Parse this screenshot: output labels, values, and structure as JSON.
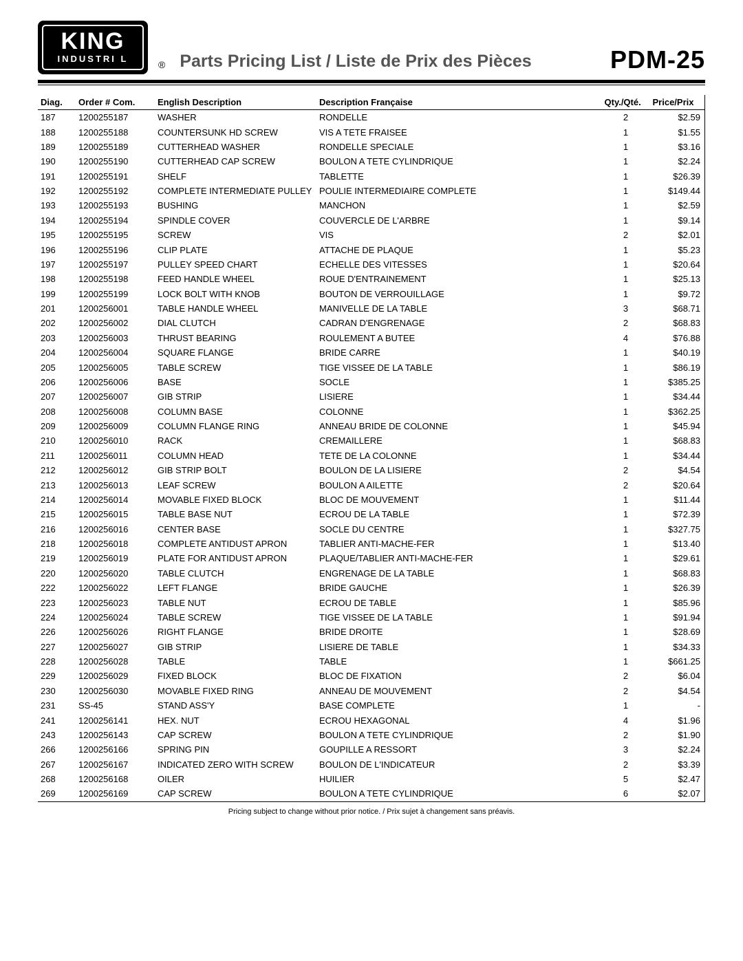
{
  "logo": {
    "line1": "KING",
    "line2": "INDUSTRI  L"
  },
  "registered": "®",
  "title": "Parts Pricing List / Liste de Prix des Pièces",
  "model": "PDM-25",
  "columns": [
    "Diag.",
    "Order # Com.",
    "English Description",
    "Description Française",
    "Qty./Qté.",
    "Price/Prix"
  ],
  "rows": [
    [
      "187",
      "1200255187",
      "WASHER",
      "RONDELLE",
      "2",
      "$2.59"
    ],
    [
      "188",
      "1200255188",
      "COUNTERSUNK HD SCREW",
      "VIS A TETE FRAISEE",
      "1",
      "$1.55"
    ],
    [
      "189",
      "1200255189",
      "CUTTERHEAD WASHER",
      "RONDELLE SPECIALE",
      "1",
      "$3.16"
    ],
    [
      "190",
      "1200255190",
      "CUTTERHEAD CAP SCREW",
      "BOULON A TETE CYLINDRIQUE",
      "1",
      "$2.24"
    ],
    [
      "191",
      "1200255191",
      "SHELF",
      "TABLETTE",
      "1",
      "$26.39"
    ],
    [
      "192",
      "1200255192",
      "COMPLETE INTERMEDIATE PULLEY",
      "POULIE INTERMEDIAIRE COMPLETE",
      "1",
      "$149.44"
    ],
    [
      "193",
      "1200255193",
      "BUSHING",
      "MANCHON",
      "1",
      "$2.59"
    ],
    [
      "194",
      "1200255194",
      "SPINDLE COVER",
      "COUVERCLE DE L'ARBRE",
      "1",
      "$9.14"
    ],
    [
      "195",
      "1200255195",
      "SCREW",
      "VIS",
      "2",
      "$2.01"
    ],
    [
      "196",
      "1200255196",
      "CLIP PLATE",
      "ATTACHE DE PLAQUE",
      "1",
      "$5.23"
    ],
    [
      "197",
      "1200255197",
      "PULLEY SPEED CHART",
      "ECHELLE DES VITESSES",
      "1",
      "$20.64"
    ],
    [
      "198",
      "1200255198",
      "FEED HANDLE WHEEL",
      "ROUE D'ENTRAINEMENT",
      "1",
      "$25.13"
    ],
    [
      "199",
      "1200255199",
      "LOCK BOLT WITH KNOB",
      "BOUTON DE VERROUILLAGE",
      "1",
      "$9.72"
    ],
    [
      "201",
      "1200256001",
      "TABLE HANDLE WHEEL",
      "MANIVELLE DE LA TABLE",
      "3",
      "$68.71"
    ],
    [
      "202",
      "1200256002",
      "DIAL CLUTCH",
      "CADRAN D'ENGRENAGE",
      "2",
      "$68.83"
    ],
    [
      "203",
      "1200256003",
      "THRUST BEARING",
      "ROULEMENT A BUTEE",
      "4",
      "$76.88"
    ],
    [
      "204",
      "1200256004",
      "SQUARE FLANGE",
      "BRIDE CARRE",
      "1",
      "$40.19"
    ],
    [
      "205",
      "1200256005",
      "TABLE SCREW",
      "TIGE VISSEE DE LA TABLE",
      "1",
      "$86.19"
    ],
    [
      "206",
      "1200256006",
      "BASE",
      "SOCLE",
      "1",
      "$385.25"
    ],
    [
      "207",
      "1200256007",
      "GIB STRIP",
      "LISIERE",
      "1",
      "$34.44"
    ],
    [
      "208",
      "1200256008",
      "COLUMN BASE",
      "COLONNE",
      "1",
      "$362.25"
    ],
    [
      "209",
      "1200256009",
      "COLUMN FLANGE RING",
      "ANNEAU BRIDE DE COLONNE",
      "1",
      "$45.94"
    ],
    [
      "210",
      "1200256010",
      "RACK",
      "CREMAILLERE",
      "1",
      "$68.83"
    ],
    [
      "211",
      "1200256011",
      "COLUMN HEAD",
      "TETE DE LA COLONNE",
      "1",
      "$34.44"
    ],
    [
      "212",
      "1200256012",
      "GIB STRIP BOLT",
      "BOULON DE LA LISIERE",
      "2",
      "$4.54"
    ],
    [
      "213",
      "1200256013",
      "LEAF SCREW",
      "BOULON A AILETTE",
      "2",
      "$20.64"
    ],
    [
      "214",
      "1200256014",
      "MOVABLE FIXED BLOCK",
      "BLOC DE MOUVEMENT",
      "1",
      "$11.44"
    ],
    [
      "215",
      "1200256015",
      "TABLE BASE NUT",
      "ECROU DE LA TABLE",
      "1",
      "$72.39"
    ],
    [
      "216",
      "1200256016",
      "CENTER BASE",
      "SOCLE DU CENTRE",
      "1",
      "$327.75"
    ],
    [
      "218",
      "1200256018",
      "COMPLETE ANTIDUST APRON",
      "TABLIER ANTI-MACHE-FER",
      "1",
      "$13.40"
    ],
    [
      "219",
      "1200256019",
      "PLATE FOR ANTIDUST APRON",
      "PLAQUE/TABLIER ANTI-MACHE-FER",
      "1",
      "$29.61"
    ],
    [
      "220",
      "1200256020",
      "TABLE CLUTCH",
      "ENGRENAGE DE LA TABLE",
      "1",
      "$68.83"
    ],
    [
      "222",
      "1200256022",
      "LEFT FLANGE",
      "BRIDE GAUCHE",
      "1",
      "$26.39"
    ],
    [
      "223",
      "1200256023",
      "TABLE NUT",
      "ECROU DE TABLE",
      "1",
      "$85.96"
    ],
    [
      "224",
      "1200256024",
      "TABLE SCREW",
      "TIGE VISSEE DE LA TABLE",
      "1",
      "$91.94"
    ],
    [
      "226",
      "1200256026",
      "RIGHT FLANGE",
      "BRIDE DROITE",
      "1",
      "$28.69"
    ],
    [
      "227",
      "1200256027",
      "GIB STRIP",
      "LISIERE DE TABLE",
      "1",
      "$34.33"
    ],
    [
      "228",
      "1200256028",
      "TABLE",
      "TABLE",
      "1",
      "$661.25"
    ],
    [
      "229",
      "1200256029",
      "FIXED BLOCK",
      "BLOC DE FIXATION",
      "2",
      "$6.04"
    ],
    [
      "230",
      "1200256030",
      "MOVABLE FIXED RING",
      "ANNEAU DE MOUVEMENT",
      "2",
      "$4.54"
    ],
    [
      "231",
      "SS-45",
      "STAND ASS'Y",
      "BASE COMPLETE",
      "1",
      "-"
    ],
    [
      "241",
      "1200256141",
      "HEX. NUT",
      "ECROU HEXAGONAL",
      "4",
      "$1.96"
    ],
    [
      "243",
      "1200256143",
      "CAP SCREW",
      "BOULON A TETE CYLINDRIQUE",
      "2",
      "$1.90"
    ],
    [
      "266",
      "1200256166",
      "SPRING PIN",
      "GOUPILLE A RESSORT",
      "3",
      "$2.24"
    ],
    [
      "267",
      "1200256167",
      "INDICATED ZERO WITH SCREW",
      "BOULON DE L'INDICATEUR",
      "2",
      "$3.39"
    ],
    [
      "268",
      "1200256168",
      "OILER",
      "HUILIER",
      "5",
      "$2.47"
    ],
    [
      "269",
      "1200256169",
      "CAP SCREW",
      "BOULON A TETE CYLINDRIQUE",
      "6",
      "$2.07"
    ]
  ],
  "footer": "Pricing subject to change without prior notice. / Prix sujet à changement sans préavis."
}
